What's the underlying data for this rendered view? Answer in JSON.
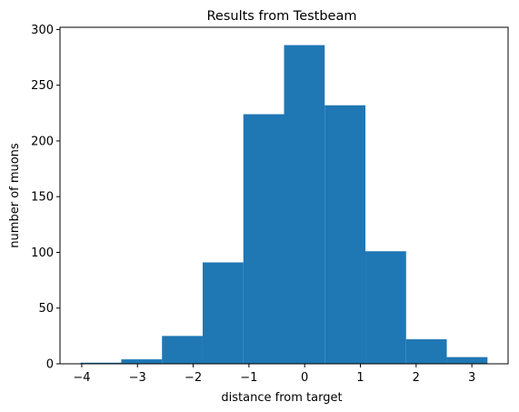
{
  "chart_data": {
    "type": "bar",
    "title": "Results from Testbeam",
    "xlabel": "distance from target",
    "ylabel": "number of muons",
    "bin_edges": [
      -4.02,
      -3.29,
      -2.56,
      -1.83,
      -1.1,
      -0.37,
      0.36,
      1.09,
      1.82,
      2.55,
      3.28
    ],
    "values": [
      1,
      4,
      25,
      91,
      224,
      286,
      232,
      101,
      22,
      6
    ],
    "xlim": [
      -4.39,
      3.65
    ],
    "ylim": [
      0,
      302
    ],
    "x_ticks": [
      -4,
      -3,
      -2,
      -1,
      0,
      1,
      2,
      3
    ],
    "y_ticks": [
      0,
      50,
      100,
      150,
      200,
      250,
      300
    ],
    "bar_color": "#1f77b4",
    "grid": false,
    "legend": "none"
  }
}
